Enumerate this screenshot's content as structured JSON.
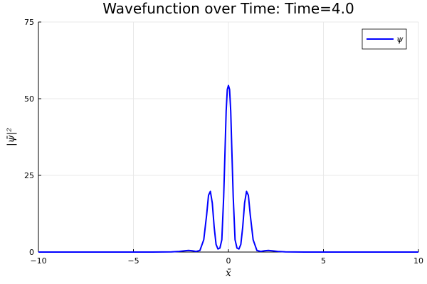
{
  "chart_data": {
    "type": "line",
    "title": "Wavefunction over Time: Time=4.0",
    "xlabel": "x̄",
    "ylabel": "|ψ̄|²",
    "xlim": [
      -10,
      10
    ],
    "ylim": [
      0,
      75
    ],
    "xticks": [
      -10,
      -5,
      0,
      5,
      10
    ],
    "xtick_labels": [
      "−10",
      "−5",
      "0",
      "5",
      "10"
    ],
    "yticks": [
      0,
      25,
      50,
      75
    ],
    "ytick_labels": [
      "0",
      "25",
      "50",
      "75"
    ],
    "grid": true,
    "legend_position": "top-right",
    "series": [
      {
        "name": "ψ",
        "color": "#0000ff",
        "x": [
          -10,
          -6,
          -4,
          -3,
          -2.6,
          -2.3,
          -2.1,
          -1.9,
          -1.7,
          -1.5,
          -1.3,
          -1.15,
          -1.05,
          -0.95,
          -0.85,
          -0.75,
          -0.65,
          -0.55,
          -0.45,
          -0.35,
          -0.25,
          -0.18,
          -0.12,
          -0.06,
          0,
          0.06,
          0.12,
          0.18,
          0.25,
          0.35,
          0.45,
          0.55,
          0.65,
          0.75,
          0.85,
          0.95,
          1.05,
          1.15,
          1.3,
          1.5,
          1.7,
          1.9,
          2.1,
          2.3,
          2.6,
          3,
          4,
          6,
          10
        ],
        "values": [
          0,
          0,
          0,
          0.05,
          0.2,
          0.4,
          0.5,
          0.4,
          0.2,
          0.5,
          4,
          12,
          18.5,
          19.8,
          16,
          8,
          2.5,
          1,
          1.3,
          4,
          18,
          33,
          46,
          53,
          54.3,
          53,
          46,
          33,
          18,
          4,
          1.3,
          1,
          2.5,
          8,
          16,
          19.8,
          18.5,
          12,
          4,
          0.5,
          0.2,
          0.4,
          0.5,
          0.4,
          0.2,
          0.05,
          0,
          0,
          0
        ]
      }
    ]
  }
}
